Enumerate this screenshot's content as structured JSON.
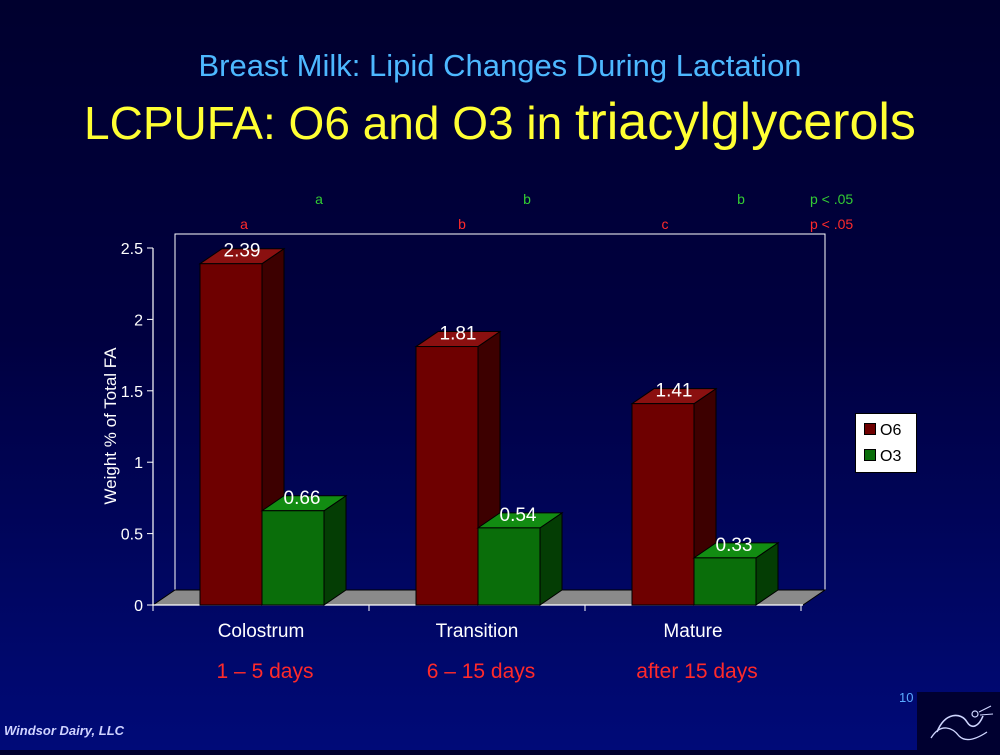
{
  "subtitle": "Breast Milk: Lipid Changes During Lactation",
  "title_part1": "LCPUFA: O6 and O3 in ",
  "title_part2": "triacylglycerols",
  "chart_data": {
    "type": "bar",
    "categories": [
      "Colostrum",
      "Transition",
      "Mature"
    ],
    "category_sublabels": [
      "1 – 5 days",
      "6 – 15 days",
      "after 15 days"
    ],
    "series": [
      {
        "name": "O6",
        "values": [
          2.39,
          1.81,
          1.41
        ],
        "color": "#6e0000"
      },
      {
        "name": "O3",
        "values": [
          0.66,
          0.54,
          0.33
        ],
        "color": "#0a6e0a"
      }
    ],
    "ylabel": "Weight % of Total FA",
    "ylim": [
      0,
      2.5
    ],
    "yticks": [
      "0",
      "0.5",
      "1",
      "1.5",
      "2",
      "2.5"
    ],
    "data_labels": [
      "2.39",
      "1.81",
      "1.41",
      "0.66",
      "0.54",
      "0.33"
    ],
    "significance": {
      "O3": {
        "letters": [
          "a",
          "b",
          "b"
        ],
        "note": "p < .05",
        "color": "#33cc33"
      },
      "O6": {
        "letters": [
          "a",
          "b",
          "c"
        ],
        "note": "p < .05",
        "color": "#ff2a2a"
      }
    },
    "legend_position": "right",
    "grid": false
  },
  "footer": {
    "company": "Windsor Dairy, LLC",
    "page": "10"
  }
}
